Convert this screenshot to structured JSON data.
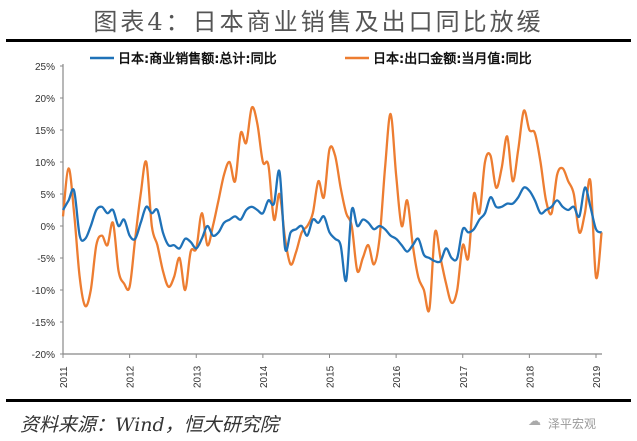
{
  "chart_data": {
    "type": "line",
    "title": "图表4：日本商业销售及出口同比放缓",
    "xlabel": "",
    "ylabel": "",
    "ylim": [
      -20,
      25
    ],
    "yticks": [
      "-20%",
      "-15%",
      "-10%",
      "-5%",
      "0%",
      "5%",
      "10%",
      "15%",
      "20%",
      "25%"
    ],
    "ytick_values": [
      -20,
      -15,
      -10,
      -5,
      0,
      5,
      10,
      15,
      20,
      25
    ],
    "xticks": [
      "2011",
      "2012",
      "2013",
      "2014",
      "2015",
      "2016",
      "2017",
      "2018",
      "2019"
    ],
    "x_start": "2011-01",
    "frequency": "monthly",
    "legend_position": "top",
    "grid": false,
    "series": [
      {
        "name": "日本:商业销售额:总计:同比",
        "color": "#1f72b8",
        "values": [
          2.5,
          4,
          5.5,
          -1.5,
          -2,
          0,
          2.5,
          3,
          2,
          2.5,
          0,
          1,
          -1.5,
          -2,
          0.5,
          3,
          2,
          2.5,
          -1,
          -3,
          -3,
          -3.5,
          -2,
          -2.5,
          -3.5,
          -2,
          0,
          -1.5,
          -1,
          0.5,
          1,
          1.5,
          1,
          2.5,
          3,
          2.5,
          2,
          4,
          3.5,
          8.5,
          -3.5,
          -1,
          -0.5,
          0,
          -1.5,
          1,
          0.5,
          1.5,
          -1,
          -2,
          -3,
          -8.5,
          2.5,
          0,
          1,
          0.5,
          -0.5,
          0,
          -0.5,
          -1.5,
          -2,
          -3,
          -4,
          -3,
          -2,
          -4.5,
          -5,
          -5.5,
          -5.5,
          -3.5,
          -5,
          -5,
          -0.5,
          -1,
          -0.5,
          1,
          2,
          4.5,
          3,
          3,
          3.5,
          3.5,
          4.5,
          6,
          5.5,
          4,
          2,
          2.5,
          3,
          4,
          3,
          2.5,
          3,
          1.5,
          6,
          3,
          -0.5,
          -1
        ]
      },
      {
        "name": "日本:出口金额:当月值:同比",
        "color": "#ed7d31",
        "values": [
          1.5,
          9,
          2,
          -8,
          -12.5,
          -10,
          -3,
          -1.5,
          -3,
          0.5,
          -7,
          -9,
          -9.5,
          -2,
          5,
          10,
          0,
          -3,
          -7,
          -9.5,
          -8,
          -5,
          -10,
          -4,
          -3.5,
          2,
          -3,
          0,
          4,
          8,
          10,
          7,
          14.5,
          13,
          18.5,
          16,
          10,
          9.5,
          1,
          5,
          -2,
          -6,
          -4,
          -1,
          0,
          2,
          7,
          4.5,
          12,
          11,
          6,
          2,
          0,
          -7,
          -5,
          -3,
          -6,
          -2,
          9,
          17.5,
          8,
          0,
          4,
          -3,
          -8,
          -10,
          -13,
          -1,
          -5,
          -9,
          -12,
          -10,
          -3,
          -5,
          5,
          2,
          10,
          11,
          6,
          9,
          14,
          7,
          12,
          18,
          15,
          14.5,
          10,
          4,
          2,
          8,
          9,
          7,
          5,
          -1,
          2,
          7,
          -8,
          -1
        ]
      }
    ]
  },
  "source": "资料来源：Wind，恒大研究院",
  "watermark": "泽平宏观"
}
